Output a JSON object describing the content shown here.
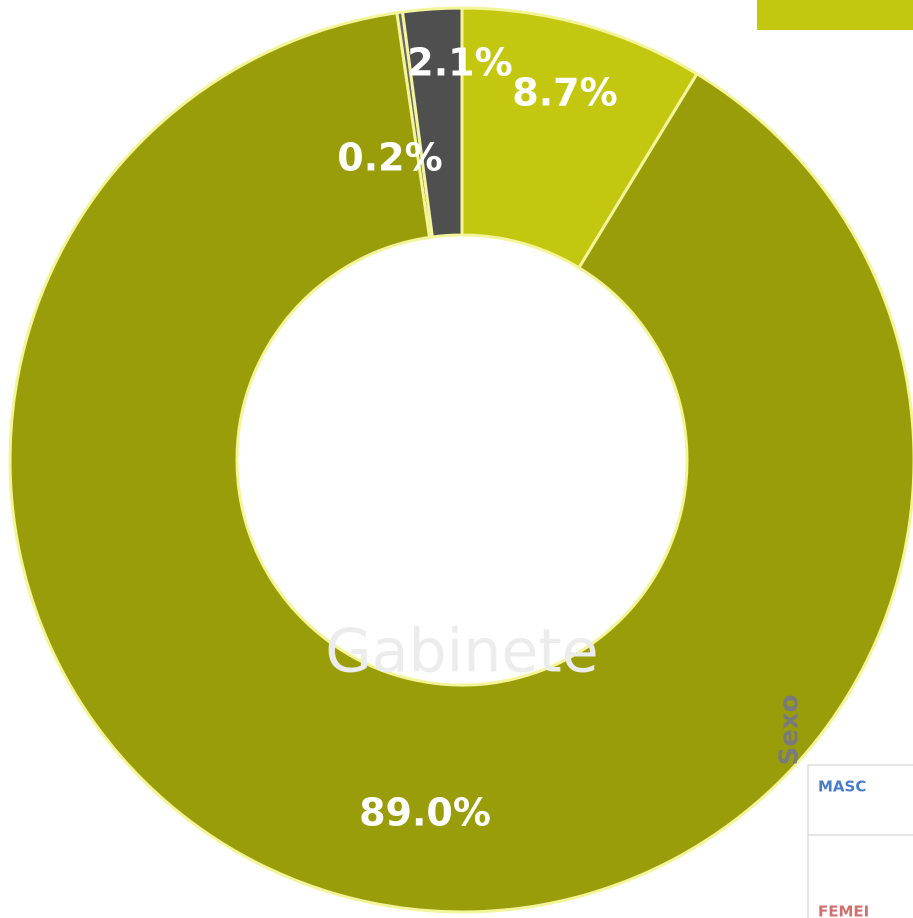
{
  "chart_data": {
    "type": "donut",
    "categories": [
      null,
      null,
      null,
      null
    ],
    "values": [
      8.7,
      89.0,
      0.2,
      2.1
    ],
    "value_labels": [
      "8.7%",
      "89.0%",
      "0.2%",
      "2.1%"
    ],
    "colors": [
      "#c4c70f",
      "#9a9d0a",
      "#6a6a6a",
      "#4f4f4f"
    ],
    "watermark": "Gabinete",
    "table": {
      "header": "Sexo",
      "rows": [
        "MASC",
        "FEMEI"
      ]
    }
  }
}
